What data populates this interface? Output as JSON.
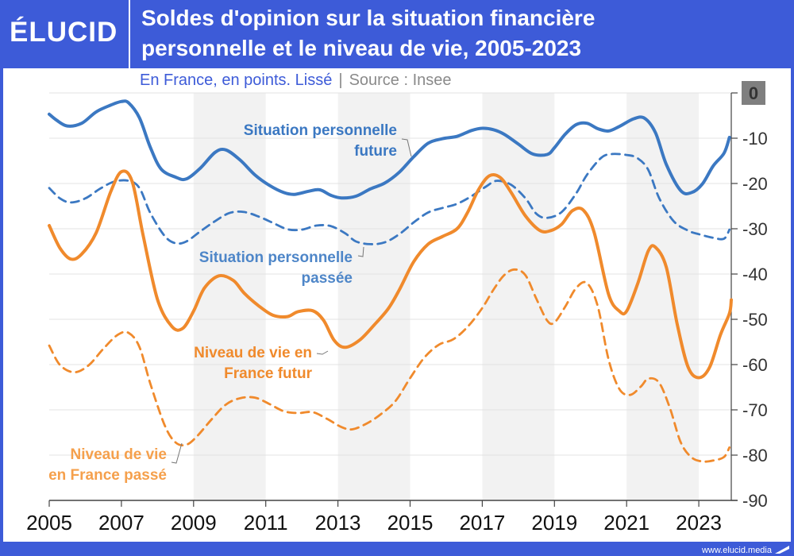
{
  "header": {
    "logo": "ÉLUCID",
    "title_line1": "Soldes d'opinion sur la situation financière",
    "title_line2": "personnelle et le niveau de vie, 2005-2023",
    "subtitle_main": "En France, en points. Lissé",
    "subtitle_sep": "|",
    "subtitle_source": "Source : Insee"
  },
  "footer": {
    "site": "www.elucid.media"
  },
  "colors": {
    "brand": "#3d5bd8",
    "blue_series": "#3b78c2",
    "orange_series": "#f08a2c",
    "band": "#f2f2f2"
  },
  "chart_data": {
    "type": "line",
    "title": "Soldes d'opinion sur la situation financière personnelle et le niveau de vie, 2005-2023",
    "subtitle": "En France, en points. Lissé | Source : Insee",
    "xlabel": "",
    "ylabel": "",
    "xlim": [
      2005,
      2023.9
    ],
    "ylim": [
      -90,
      0
    ],
    "x_ticks": [
      "2005",
      "2007",
      "2009",
      "2011",
      "2013",
      "2015",
      "2017",
      "2019",
      "2021",
      "2023"
    ],
    "y_ticks": [
      "0",
      "-10",
      "-20",
      "-30",
      "-40",
      "-50",
      "-60",
      "-70",
      "-80",
      "-90"
    ],
    "y_axis_side": "right",
    "grid": true,
    "alternating_year_bands": true,
    "series": [
      {
        "name": "Situation personnelle future",
        "color": "#3b78c2",
        "style": "solid",
        "points": [
          [
            2005,
            -4.7
          ],
          [
            2005.2,
            -6
          ],
          [
            2005.5,
            -7.3
          ],
          [
            2005.9,
            -6.7
          ],
          [
            2006.3,
            -4.2
          ],
          [
            2006.7,
            -2.7
          ],
          [
            2007.0,
            -1.9
          ],
          [
            2007.2,
            -2.2
          ],
          [
            2007.5,
            -5.5
          ],
          [
            2007.8,
            -12
          ],
          [
            2008.1,
            -16.8
          ],
          [
            2008.5,
            -18.6
          ],
          [
            2008.8,
            -19
          ],
          [
            2009.2,
            -16.5
          ],
          [
            2009.6,
            -13.1
          ],
          [
            2009.9,
            -12.6
          ],
          [
            2010.3,
            -14.9
          ],
          [
            2010.7,
            -18.1
          ],
          [
            2011.1,
            -20.4
          ],
          [
            2011.5,
            -22
          ],
          [
            2011.8,
            -22.4
          ],
          [
            2012.2,
            -21.7
          ],
          [
            2012.5,
            -21.4
          ],
          [
            2012.8,
            -22.6
          ],
          [
            2013.1,
            -23.2
          ],
          [
            2013.5,
            -22.8
          ],
          [
            2013.9,
            -21.2
          ],
          [
            2014.3,
            -19.9
          ],
          [
            2014.7,
            -17.5
          ],
          [
            2015.1,
            -14.1
          ],
          [
            2015.5,
            -11.1
          ],
          [
            2015.9,
            -10.1
          ],
          [
            2016.3,
            -9.6
          ],
          [
            2016.7,
            -8.3
          ],
          [
            2017.0,
            -7.8
          ],
          [
            2017.3,
            -8.1
          ],
          [
            2017.6,
            -9.1
          ],
          [
            2018.0,
            -11.3
          ],
          [
            2018.4,
            -13.5
          ],
          [
            2018.8,
            -13.6
          ],
          [
            2019.0,
            -12.1
          ],
          [
            2019.3,
            -9.1
          ],
          [
            2019.6,
            -7
          ],
          [
            2019.9,
            -6.7
          ],
          [
            2020.2,
            -7.9
          ],
          [
            2020.5,
            -8.4
          ],
          [
            2020.8,
            -7.4
          ],
          [
            2021.2,
            -5.7
          ],
          [
            2021.5,
            -5.6
          ],
          [
            2021.8,
            -8.8
          ],
          [
            2022.1,
            -15.8
          ],
          [
            2022.5,
            -21.6
          ],
          [
            2022.8,
            -22
          ],
          [
            2023.1,
            -20.1
          ],
          [
            2023.4,
            -16.1
          ],
          [
            2023.7,
            -13.3
          ],
          [
            2023.85,
            -9.8
          ]
        ]
      },
      {
        "name": "Situation personnelle passée",
        "color": "#3b78c2",
        "style": "dashed",
        "points": [
          [
            2005,
            -21
          ],
          [
            2005.3,
            -23.3
          ],
          [
            2005.6,
            -24.2
          ],
          [
            2006.0,
            -23.3
          ],
          [
            2006.4,
            -21.2
          ],
          [
            2006.8,
            -19.6
          ],
          [
            2007.2,
            -19.4
          ],
          [
            2007.5,
            -21
          ],
          [
            2007.8,
            -26.5
          ],
          [
            2008.2,
            -31.6
          ],
          [
            2008.5,
            -33.2
          ],
          [
            2008.8,
            -32.8
          ],
          [
            2009.2,
            -30.5
          ],
          [
            2009.6,
            -28.3
          ],
          [
            2010.0,
            -26.5
          ],
          [
            2010.4,
            -26.3
          ],
          [
            2010.8,
            -27.3
          ],
          [
            2011.2,
            -28.7
          ],
          [
            2011.6,
            -30.1
          ],
          [
            2012.0,
            -30.2
          ],
          [
            2012.4,
            -29.3
          ],
          [
            2012.8,
            -29.4
          ],
          [
            2013.2,
            -31
          ],
          [
            2013.5,
            -32.8
          ],
          [
            2013.9,
            -33.4
          ],
          [
            2014.3,
            -33
          ],
          [
            2014.7,
            -31.2
          ],
          [
            2015.1,
            -28.6
          ],
          [
            2015.5,
            -26.4
          ],
          [
            2015.9,
            -25.4
          ],
          [
            2016.3,
            -24.5
          ],
          [
            2016.7,
            -22.8
          ],
          [
            2017.1,
            -20.7
          ],
          [
            2017.4,
            -19.4
          ],
          [
            2017.8,
            -20.3
          ],
          [
            2018.2,
            -23.3
          ],
          [
            2018.5,
            -26.7
          ],
          [
            2018.8,
            -27.6
          ],
          [
            2019.2,
            -26.3
          ],
          [
            2019.6,
            -22.2
          ],
          [
            2019.9,
            -18.1
          ],
          [
            2020.3,
            -14.3
          ],
          [
            2020.6,
            -13.5
          ],
          [
            2021.0,
            -13.7
          ],
          [
            2021.3,
            -14.4
          ],
          [
            2021.6,
            -17
          ],
          [
            2021.9,
            -23.2
          ],
          [
            2022.3,
            -28.3
          ],
          [
            2022.7,
            -30.4
          ],
          [
            2023.0,
            -31.2
          ],
          [
            2023.4,
            -32
          ],
          [
            2023.7,
            -32.2
          ],
          [
            2023.85,
            -30.2
          ]
        ]
      },
      {
        "name": "Niveau de vie en France futur",
        "color": "#f08a2c",
        "style": "solid",
        "points": [
          [
            2005,
            -29.3
          ],
          [
            2005.3,
            -34.3
          ],
          [
            2005.6,
            -36.7
          ],
          [
            2005.9,
            -35.6
          ],
          [
            2006.3,
            -30.9
          ],
          [
            2006.7,
            -21.9
          ],
          [
            2007.0,
            -17.4
          ],
          [
            2007.3,
            -19.6
          ],
          [
            2007.6,
            -31.4
          ],
          [
            2008.0,
            -45.6
          ],
          [
            2008.4,
            -51.6
          ],
          [
            2008.7,
            -52
          ],
          [
            2009.0,
            -48.2
          ],
          [
            2009.3,
            -43.1
          ],
          [
            2009.7,
            -40.4
          ],
          [
            2010.1,
            -41.4
          ],
          [
            2010.4,
            -44.2
          ],
          [
            2010.8,
            -47
          ],
          [
            2011.2,
            -49.1
          ],
          [
            2011.6,
            -49.4
          ],
          [
            2011.9,
            -48.3
          ],
          [
            2012.3,
            -48.1
          ],
          [
            2012.6,
            -50.2
          ],
          [
            2012.9,
            -54.7
          ],
          [
            2013.2,
            -56.2
          ],
          [
            2013.6,
            -54.6
          ],
          [
            2014.0,
            -51.3
          ],
          [
            2014.4,
            -47.6
          ],
          [
            2014.7,
            -43.5
          ],
          [
            2015.1,
            -37.3
          ],
          [
            2015.5,
            -33.4
          ],
          [
            2015.9,
            -31.7
          ],
          [
            2016.3,
            -30
          ],
          [
            2016.6,
            -26.3
          ],
          [
            2016.9,
            -21.3
          ],
          [
            2017.2,
            -18.3
          ],
          [
            2017.5,
            -18.7
          ],
          [
            2017.8,
            -22
          ],
          [
            2018.2,
            -27.2
          ],
          [
            2018.6,
            -30.4
          ],
          [
            2018.9,
            -30.4
          ],
          [
            2019.2,
            -29
          ],
          [
            2019.5,
            -26
          ],
          [
            2019.8,
            -25.9
          ],
          [
            2020.1,
            -30.8
          ],
          [
            2020.5,
            -44.5
          ],
          [
            2020.8,
            -48.2
          ],
          [
            2021.0,
            -48.2
          ],
          [
            2021.3,
            -42.3
          ],
          [
            2021.6,
            -34.9
          ],
          [
            2021.8,
            -34.1
          ],
          [
            2022.1,
            -38.5
          ],
          [
            2022.4,
            -51
          ],
          [
            2022.7,
            -60.5
          ],
          [
            2023.0,
            -62.9
          ],
          [
            2023.3,
            -60.6
          ],
          [
            2023.6,
            -53.4
          ],
          [
            2023.85,
            -48.7
          ],
          [
            2023.9,
            -45.7
          ]
        ]
      },
      {
        "name": "Niveau de vie en France passé",
        "color": "#f08a2c",
        "style": "dashed",
        "points": [
          [
            2005,
            -55.8
          ],
          [
            2005.3,
            -60.1
          ],
          [
            2005.7,
            -61.7
          ],
          [
            2006.1,
            -60.1
          ],
          [
            2006.5,
            -56.5
          ],
          [
            2006.9,
            -53.4
          ],
          [
            2007.2,
            -53
          ],
          [
            2007.5,
            -56.1
          ],
          [
            2007.8,
            -64.2
          ],
          [
            2008.2,
            -73.4
          ],
          [
            2008.5,
            -77.2
          ],
          [
            2008.8,
            -77.7
          ],
          [
            2009.1,
            -75.8
          ],
          [
            2009.5,
            -72.1
          ],
          [
            2009.9,
            -68.8
          ],
          [
            2010.3,
            -67.4
          ],
          [
            2010.7,
            -67.3
          ],
          [
            2011.1,
            -68.7
          ],
          [
            2011.5,
            -70.3
          ],
          [
            2011.9,
            -70.7
          ],
          [
            2012.3,
            -70.5
          ],
          [
            2012.7,
            -72
          ],
          [
            2013.1,
            -73.8
          ],
          [
            2013.4,
            -74.3
          ],
          [
            2013.8,
            -73
          ],
          [
            2014.2,
            -70.9
          ],
          [
            2014.6,
            -68
          ],
          [
            2015.0,
            -63
          ],
          [
            2015.4,
            -58.4
          ],
          [
            2015.8,
            -55.6
          ],
          [
            2016.2,
            -54.4
          ],
          [
            2016.6,
            -51.6
          ],
          [
            2017.0,
            -47.5
          ],
          [
            2017.3,
            -43.6
          ],
          [
            2017.6,
            -40.3
          ],
          [
            2017.9,
            -39
          ],
          [
            2018.2,
            -40.3
          ],
          [
            2018.5,
            -45.5
          ],
          [
            2018.8,
            -50.3
          ],
          [
            2019.0,
            -50.7
          ],
          [
            2019.3,
            -47.2
          ],
          [
            2019.6,
            -43.1
          ],
          [
            2019.9,
            -42
          ],
          [
            2020.2,
            -47.1
          ],
          [
            2020.5,
            -58.9
          ],
          [
            2020.8,
            -65.4
          ],
          [
            2021.1,
            -66.7
          ],
          [
            2021.4,
            -64.8
          ],
          [
            2021.6,
            -63.1
          ],
          [
            2021.9,
            -64
          ],
          [
            2022.2,
            -69.6
          ],
          [
            2022.5,
            -77.2
          ],
          [
            2022.8,
            -80.5
          ],
          [
            2023.1,
            -81.4
          ],
          [
            2023.4,
            -81.2
          ],
          [
            2023.7,
            -80.4
          ],
          [
            2023.85,
            -78.3
          ]
        ]
      }
    ],
    "annotations": [
      {
        "series": "Situation personnelle future",
        "color": "#3b78c2",
        "lines": [
          "Situation personnelle",
          "future"
        ]
      },
      {
        "series": "Situation personnelle passée",
        "color": "#4e86c8",
        "lines": [
          "Situation personnelle",
          "passée"
        ]
      },
      {
        "series": "Niveau de vie en France futur",
        "color": "#f08a2c",
        "lines": [
          "Niveau de vie en",
          "France futur"
        ]
      },
      {
        "series": "Niveau de vie en France passé",
        "color": "#f5a04c",
        "lines": [
          "Niveau de vie",
          "en France passé"
        ]
      }
    ]
  }
}
